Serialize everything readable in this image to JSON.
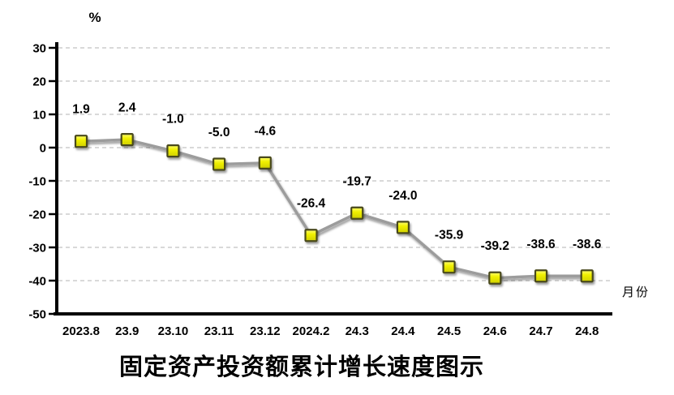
{
  "chart_data": {
    "type": "line",
    "title": "固定资产投资额累计增长速度图示",
    "ylabel": "%",
    "xlabel": "月份",
    "categories": [
      "2023.8",
      "23.9",
      "23.10",
      "23.11",
      "23.12",
      "2024.2",
      "24.3",
      "24.4",
      "24.5",
      "24.6",
      "24.7",
      "24.8"
    ],
    "series": [
      {
        "name": "固定资产投资额累计增长速度",
        "values": [
          1.9,
          2.4,
          -1.0,
          -5.0,
          -4.6,
          -26.4,
          -19.7,
          -24.0,
          -35.9,
          -39.2,
          -38.6,
          -38.6
        ]
      }
    ],
    "data_labels_shown": true,
    "ylim": [
      -50,
      30
    ],
    "y_tick_interval": 10,
    "y_ticks": [
      30,
      20,
      10,
      0,
      -10,
      -20,
      -30,
      -40,
      -50
    ],
    "grid": "horizontal-dashed",
    "legend_position": "none",
    "colors": {
      "line": "#9c9c9c",
      "marker_fill_top": "#ffff70",
      "marker_fill_mid": "#f0f000",
      "marker_fill_bottom": "#cfcf00",
      "marker_border": "#4a4a1d",
      "gridline": "#c2c2c2",
      "axis": "#000000",
      "text": "#000000",
      "background": "#ffffff"
    }
  }
}
